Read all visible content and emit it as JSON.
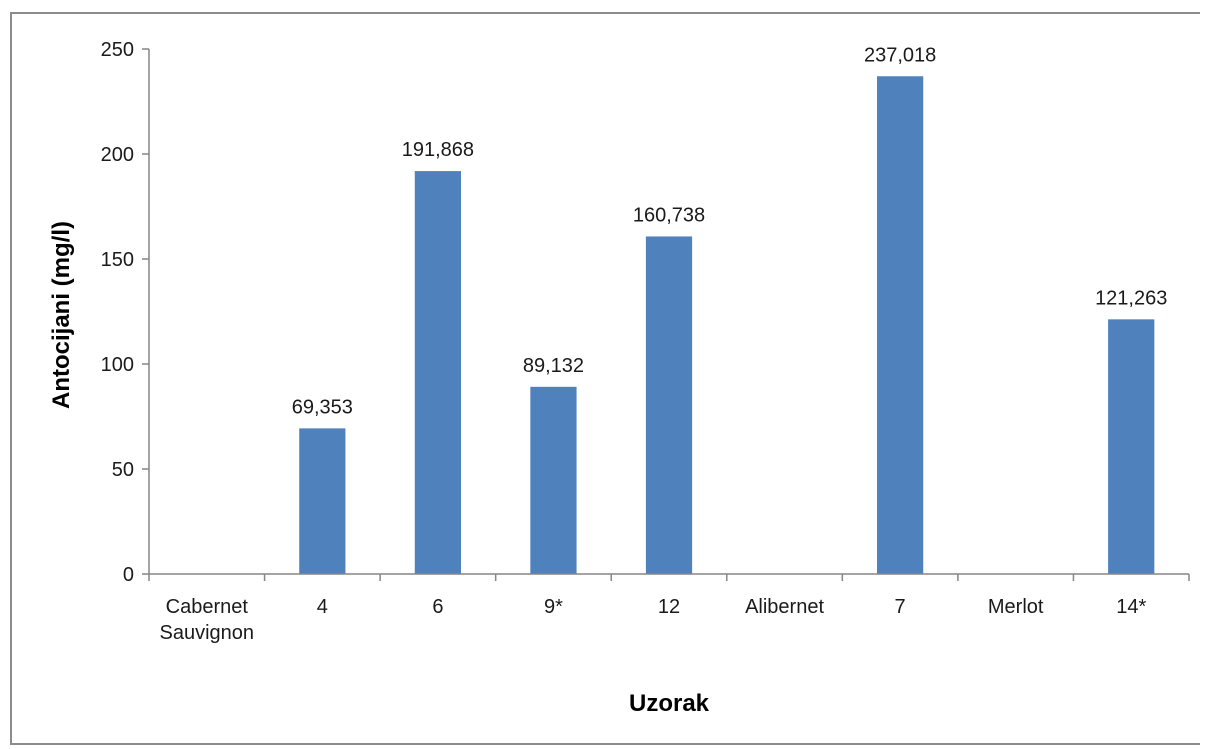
{
  "chart_data": {
    "type": "bar",
    "title": "",
    "xlabel": "Uzorak",
    "ylabel": "Antocijani (mg/l)",
    "ylim": [
      0,
      250
    ],
    "yticks": [
      0,
      50,
      100,
      150,
      200,
      250
    ],
    "grid": false,
    "legend": "none",
    "bar_color": "#4f81bd",
    "categories": [
      [
        "Cabernet",
        "Sauvignon"
      ],
      [
        "4"
      ],
      [
        "6"
      ],
      [
        "9*"
      ],
      [
        "12"
      ],
      [
        "Alibernet"
      ],
      [
        "7"
      ],
      [
        "Merlot"
      ],
      [
        "14*"
      ]
    ],
    "values": [
      null,
      69.353,
      191.868,
      89.132,
      160.738,
      null,
      237.018,
      null,
      121.263
    ],
    "data_labels": [
      "",
      "69,353",
      "191,868",
      "89,132",
      "160,738",
      "",
      "237,018",
      "",
      "121,263"
    ]
  }
}
